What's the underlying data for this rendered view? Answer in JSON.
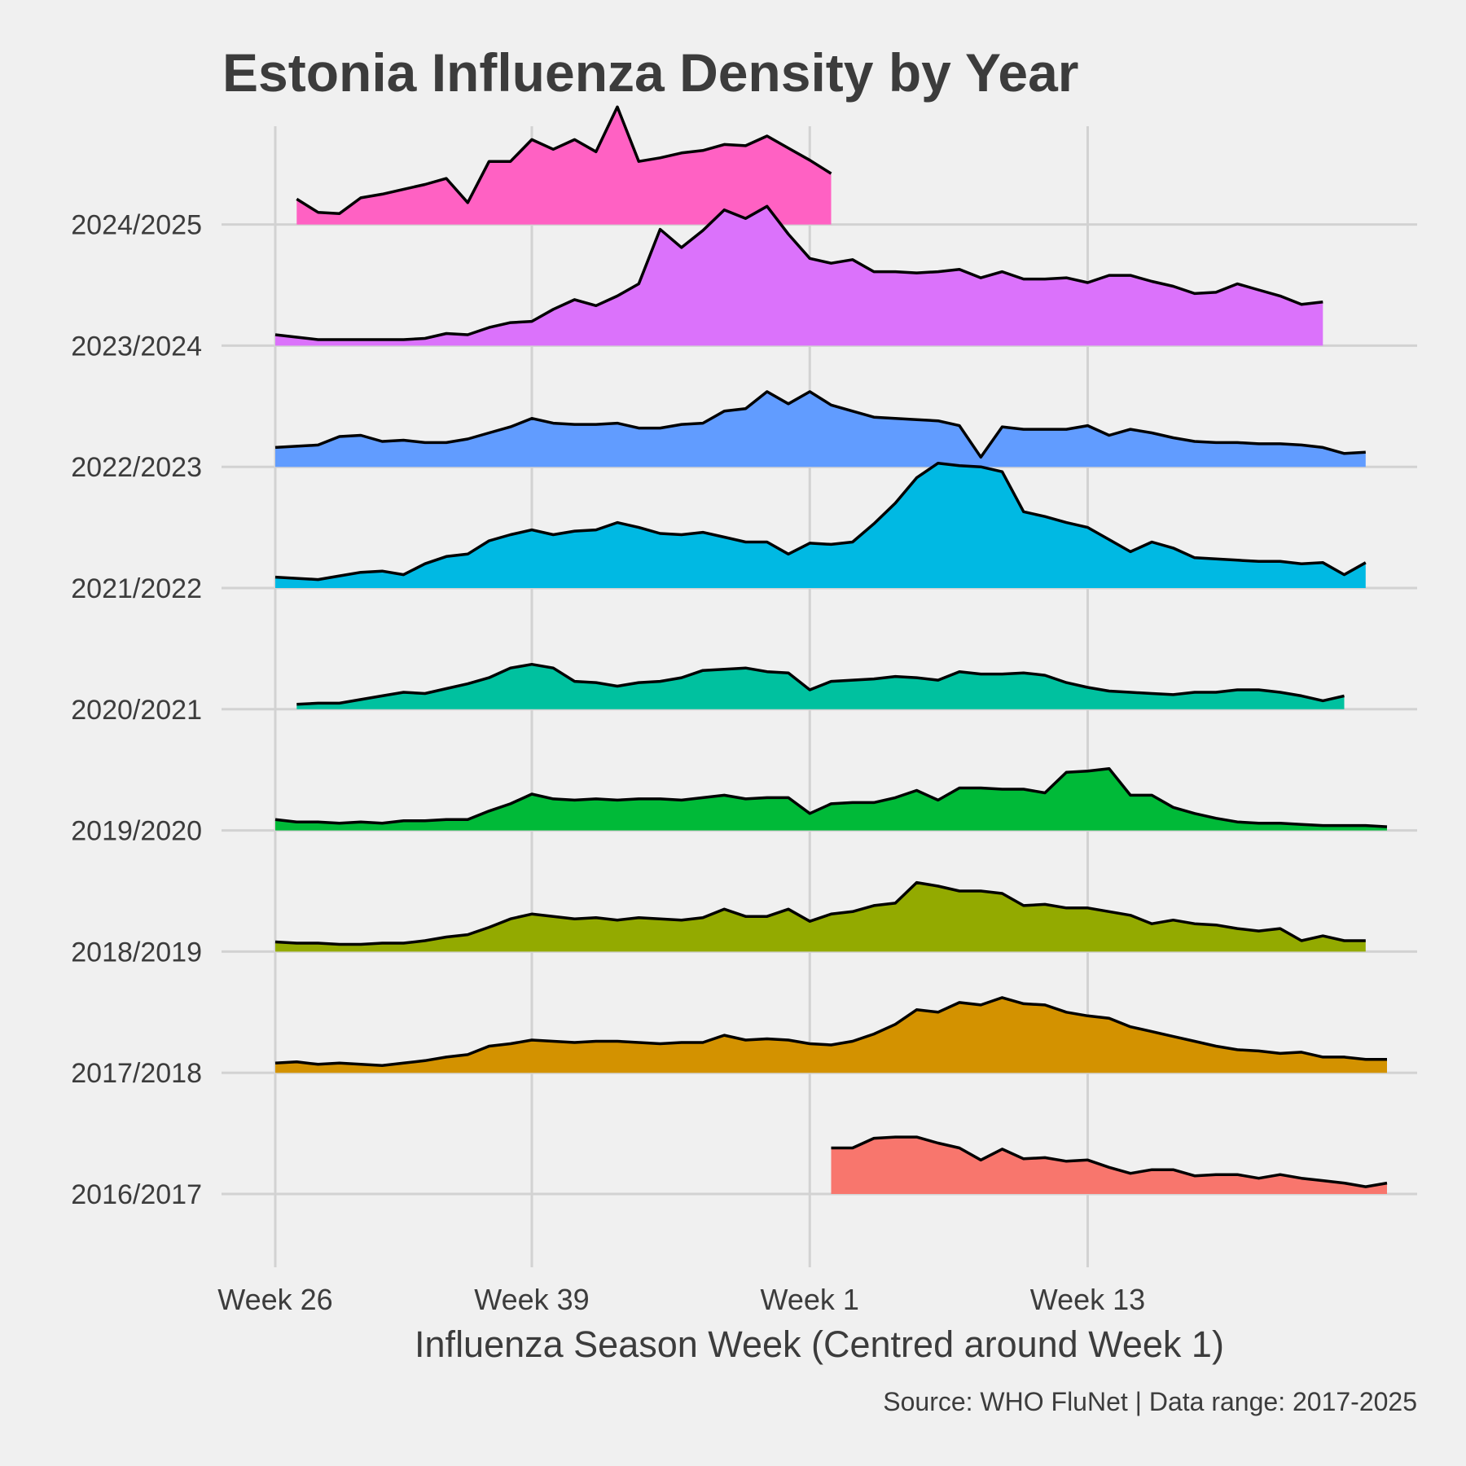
{
  "chart_data": {
    "type": "area",
    "title": "Estonia Influenza Density by Year",
    "xlabel": "Influenza Season Week (Centred around Week 1)",
    "ylabel": "",
    "caption": "Source: WHO FluNet | Data range: 2017-2025",
    "x_ticks": [
      {
        "label": "Week 26",
        "pos": 0
      },
      {
        "label": "Week 39",
        "pos": 12
      },
      {
        "label": "Week 1",
        "pos": 25
      },
      {
        "label": "Week 13",
        "pos": 38
      }
    ],
    "xlim": [
      -3,
      54
    ],
    "grid": true,
    "legend": "none",
    "series": [
      {
        "name": "2016/2017",
        "color": "#F8766D",
        "start": 26,
        "values": [
          0.38,
          0.38,
          0.46,
          0.47,
          0.47,
          0.42,
          0.38,
          0.28,
          0.37,
          0.29,
          0.3,
          0.27,
          0.28,
          0.22,
          0.17,
          0.2,
          0.2,
          0.15,
          0.16,
          0.16,
          0.13,
          0.16,
          0.13,
          0.11,
          0.09,
          0.06,
          0.09
        ]
      },
      {
        "name": "2017/2018",
        "color": "#D39200",
        "start": 0,
        "values": [
          0.08,
          0.09,
          0.07,
          0.08,
          0.07,
          0.06,
          0.08,
          0.1,
          0.13,
          0.15,
          0.22,
          0.24,
          0.27,
          0.26,
          0.25,
          0.26,
          0.26,
          0.25,
          0.24,
          0.25,
          0.25,
          0.31,
          0.27,
          0.28,
          0.27,
          0.24,
          0.23,
          0.26,
          0.32,
          0.4,
          0.52,
          0.5,
          0.58,
          0.56,
          0.62,
          0.57,
          0.56,
          0.5,
          0.47,
          0.45,
          0.38,
          0.34,
          0.3,
          0.26,
          0.22,
          0.19,
          0.18,
          0.16,
          0.17,
          0.13,
          0.13,
          0.11,
          0.11
        ]
      },
      {
        "name": "2018/2019",
        "color": "#93AA00",
        "start": 0,
        "values": [
          0.08,
          0.07,
          0.07,
          0.06,
          0.06,
          0.07,
          0.07,
          0.09,
          0.12,
          0.14,
          0.2,
          0.27,
          0.31,
          0.29,
          0.27,
          0.28,
          0.26,
          0.28,
          0.27,
          0.26,
          0.28,
          0.35,
          0.29,
          0.29,
          0.35,
          0.25,
          0.31,
          0.33,
          0.38,
          0.4,
          0.57,
          0.54,
          0.5,
          0.5,
          0.48,
          0.38,
          0.39,
          0.36,
          0.36,
          0.33,
          0.3,
          0.23,
          0.26,
          0.23,
          0.22,
          0.19,
          0.17,
          0.19,
          0.09,
          0.13,
          0.09,
          0.09
        ]
      },
      {
        "name": "2019/2020",
        "color": "#00BA38",
        "start": 0,
        "values": [
          0.09,
          0.07,
          0.07,
          0.06,
          0.07,
          0.06,
          0.08,
          0.08,
          0.09,
          0.09,
          0.16,
          0.22,
          0.3,
          0.26,
          0.25,
          0.26,
          0.25,
          0.26,
          0.26,
          0.25,
          0.27,
          0.29,
          0.26,
          0.27,
          0.27,
          0.14,
          0.22,
          0.23,
          0.23,
          0.27,
          0.33,
          0.25,
          0.35,
          0.35,
          0.34,
          0.34,
          0.31,
          0.48,
          0.49,
          0.51,
          0.29,
          0.29,
          0.19,
          0.14,
          0.1,
          0.07,
          0.06,
          0.06,
          0.05,
          0.04,
          0.04,
          0.04,
          0.03
        ]
      },
      {
        "name": "2020/2021",
        "color": "#00C19F",
        "start": 1,
        "values": [
          0.04,
          0.05,
          0.05,
          0.08,
          0.11,
          0.14,
          0.13,
          0.17,
          0.21,
          0.26,
          0.34,
          0.37,
          0.34,
          0.23,
          0.22,
          0.19,
          0.22,
          0.23,
          0.26,
          0.32,
          0.33,
          0.34,
          0.31,
          0.3,
          0.16,
          0.23,
          0.24,
          0.25,
          0.27,
          0.26,
          0.24,
          0.31,
          0.29,
          0.29,
          0.3,
          0.28,
          0.22,
          0.18,
          0.15,
          0.14,
          0.13,
          0.12,
          0.14,
          0.14,
          0.16,
          0.16,
          0.14,
          0.11,
          0.07,
          0.11
        ]
      },
      {
        "name": "2021/2022",
        "color": "#00B9E3",
        "start": 0,
        "values": [
          0.09,
          0.08,
          0.07,
          0.1,
          0.13,
          0.14,
          0.11,
          0.2,
          0.26,
          0.28,
          0.39,
          0.44,
          0.48,
          0.44,
          0.47,
          0.48,
          0.54,
          0.5,
          0.45,
          0.44,
          0.46,
          0.42,
          0.38,
          0.38,
          0.28,
          0.37,
          0.36,
          0.38,
          0.53,
          0.7,
          0.91,
          1.03,
          1.01,
          1.0,
          0.96,
          0.63,
          0.59,
          0.54,
          0.5,
          0.4,
          0.3,
          0.38,
          0.33,
          0.25,
          0.24,
          0.23,
          0.22,
          0.22,
          0.2,
          0.21,
          0.11,
          0.21
        ]
      },
      {
        "name": "2022/2023",
        "color": "#619CFF",
        "start": 0,
        "values": [
          0.16,
          0.17,
          0.18,
          0.25,
          0.26,
          0.21,
          0.22,
          0.2,
          0.2,
          0.23,
          0.28,
          0.33,
          0.4,
          0.36,
          0.35,
          0.35,
          0.36,
          0.32,
          0.32,
          0.35,
          0.36,
          0.46,
          0.48,
          0.62,
          0.52,
          0.62,
          0.51,
          0.46,
          0.41,
          0.4,
          0.39,
          0.38,
          0.34,
          0.08,
          0.33,
          0.31,
          0.31,
          0.31,
          0.34,
          0.26,
          0.31,
          0.28,
          0.24,
          0.21,
          0.2,
          0.2,
          0.19,
          0.19,
          0.18,
          0.16,
          0.11,
          0.12
        ]
      },
      {
        "name": "2023/2024",
        "color": "#DB72FB",
        "start": 0,
        "values": [
          0.09,
          0.07,
          0.05,
          0.05,
          0.05,
          0.05,
          0.05,
          0.06,
          0.1,
          0.09,
          0.15,
          0.19,
          0.2,
          0.3,
          0.38,
          0.33,
          0.41,
          0.51,
          0.96,
          0.81,
          0.95,
          1.12,
          1.05,
          1.15,
          0.92,
          0.72,
          0.68,
          0.71,
          0.61,
          0.61,
          0.6,
          0.61,
          0.63,
          0.56,
          0.61,
          0.55,
          0.55,
          0.56,
          0.52,
          0.58,
          0.58,
          0.53,
          0.49,
          0.43,
          0.44,
          0.51,
          0.46,
          0.41,
          0.34,
          0.36
        ]
      },
      {
        "name": "2024/2025",
        "color": "#FF61C3",
        "start": 1,
        "values": [
          0.21,
          0.1,
          0.09,
          0.22,
          0.25,
          0.29,
          0.33,
          0.38,
          0.18,
          0.52,
          0.52,
          0.7,
          0.62,
          0.7,
          0.6,
          0.97,
          0.52,
          0.55,
          0.59,
          0.61,
          0.66,
          0.65,
          0.73,
          0.63,
          0.53,
          0.42
        ]
      }
    ]
  }
}
